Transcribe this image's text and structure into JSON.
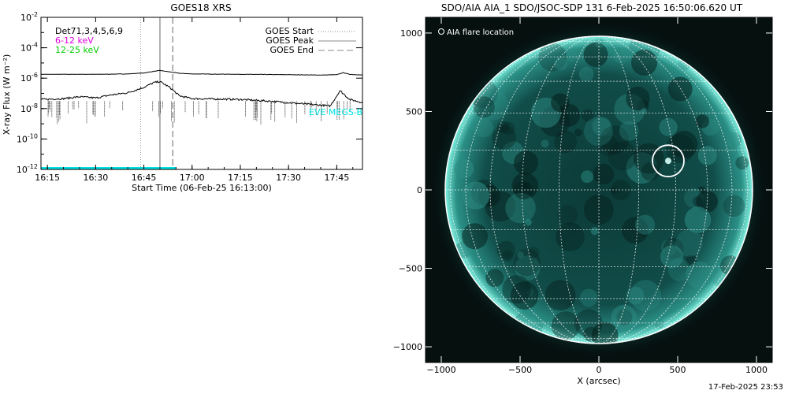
{
  "chart_data": [
    {
      "type": "line",
      "title": "GOES18 XRS",
      "xlabel": "Start Time (06-Feb-25 16:13:00)",
      "ylabel": "X-ray Flux (W m⁻²)",
      "y_scale": "log",
      "ylim": [
        "1e-12",
        "1e-2"
      ],
      "xlim": [
        "16:13",
        "17:53"
      ],
      "x_ticks": [
        "16:15",
        "16:30",
        "16:45",
        "17:00",
        "17:15",
        "17:30",
        "17:45"
      ],
      "y_ticks": [
        {
          "base": "10",
          "exp": "-2"
        },
        {
          "base": "10",
          "exp": "-4"
        },
        {
          "base": "10",
          "exp": "-6"
        },
        {
          "base": "10",
          "exp": "-8"
        },
        {
          "base": "10",
          "exp": "-10"
        },
        {
          "base": "10",
          "exp": "-12"
        }
      ],
      "det_label": "Det71,3,4,5,6,9",
      "legend_left": [
        {
          "label": "6-12 keV",
          "color": "#e000e0"
        },
        {
          "label": "12-25 keV",
          "color": "#00cc00"
        }
      ],
      "legend_right": [
        {
          "label": "GOES Start",
          "style": "dotted"
        },
        {
          "label": "GOES Peak",
          "style": "solid"
        },
        {
          "label": "GOES End",
          "style": "dashed"
        }
      ],
      "eve_label": "EVE MEGS-B",
      "markers": {
        "goes_start": "16:44",
        "goes_peak": "16:50",
        "goes_end": "16:54"
      },
      "series": [
        {
          "name": "",
          "color": "#000000",
          "x": [
            "16:13",
            "16:20",
            "16:30",
            "16:40",
            "16:45",
            "16:48",
            "16:50",
            "16:53",
            "16:56",
            "17:00",
            "17:15",
            "17:30",
            "17:40",
            "17:45",
            "17:47",
            "17:49",
            "17:53"
          ],
          "values": [
            "1.8e-6",
            "1.8e-6",
            "1.8e-6",
            "1.9e-6",
            "2.2e-6",
            "2.8e-6",
            "3.2e-6",
            "2.6e-6",
            "2.1e-6",
            "1.9e-6",
            "1.8e-6",
            "1.7e-6",
            "1.6e-6",
            "1.7e-6",
            "2.3e-6",
            "1.8e-6",
            "1.6e-6"
          ]
        },
        {
          "name": "",
          "color": "#000000",
          "x": [
            "16:13",
            "16:20",
            "16:25",
            "16:30",
            "16:35",
            "16:40",
            "16:45",
            "16:48",
            "16:50",
            "16:53",
            "16:56",
            "17:00",
            "17:15",
            "17:25",
            "17:35",
            "17:43",
            "17:46",
            "17:49",
            "17:53"
          ],
          "values": [
            "4e-8",
            "4.5e-8",
            "6e-8",
            "5e-8",
            "8e-8",
            "1.1e-7",
            "2.5e-7",
            "5e-7",
            "6e-7",
            "2.5e-7",
            "7e-8",
            "4.5e-8",
            "4e-8",
            "3e-8",
            "2e-8",
            "1.5e-8",
            "1.5e-7",
            "4e-8",
            "2.5e-8"
          ]
        }
      ],
      "eve_band": {
        "color": "#00e0e0",
        "y": "1.2e-12"
      }
    },
    {
      "type": "image",
      "title": "SDO/AIA AIA_1 SDO/JSOC-SDP 131  6-Feb-2025 16:50:06.620 UT",
      "xlabel": "X (arcsec)",
      "xlim": [
        -1100,
        1100
      ],
      "ylim": [
        -1100,
        1100
      ],
      "x_ticks": [
        -1000,
        -500,
        0,
        500,
        1000
      ],
      "y_ticks": [
        1000,
        500,
        0,
        -500,
        -1000
      ],
      "legend": "AIA flare location",
      "flare_location": {
        "x": 440,
        "y": 185,
        "radius_arcsec": 100
      },
      "solar_radius_arcsec": 975,
      "colors": {
        "background": "#05100f",
        "disk": "#0f4f4a",
        "limb": "#7ff0e0"
      }
    }
  ],
  "timestamp": "17-Feb-2025 23:53"
}
